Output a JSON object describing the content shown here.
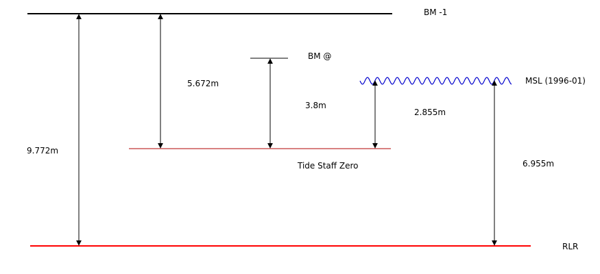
{
  "labels": {
    "bm1": "BM -1",
    "bm_at": "BM @",
    "msl": "MSL (1996-01)",
    "tide_staff_zero": "Tide Staff Zero",
    "rlr": "RLR"
  },
  "measurements": {
    "bm1_to_rlr": "9.772m",
    "bm1_to_tsz": "5.672m",
    "bmat_to_tsz": "3.8m",
    "msl_to_tsz": "2.855m",
    "msl_to_rlr": "6.955m"
  },
  "colors": {
    "datum_line": "#000000",
    "tide_staff_zero_line": "#b00000",
    "rlr_line": "#ff0000",
    "msl_wave": "#0000cc",
    "arrow": "#000000"
  }
}
